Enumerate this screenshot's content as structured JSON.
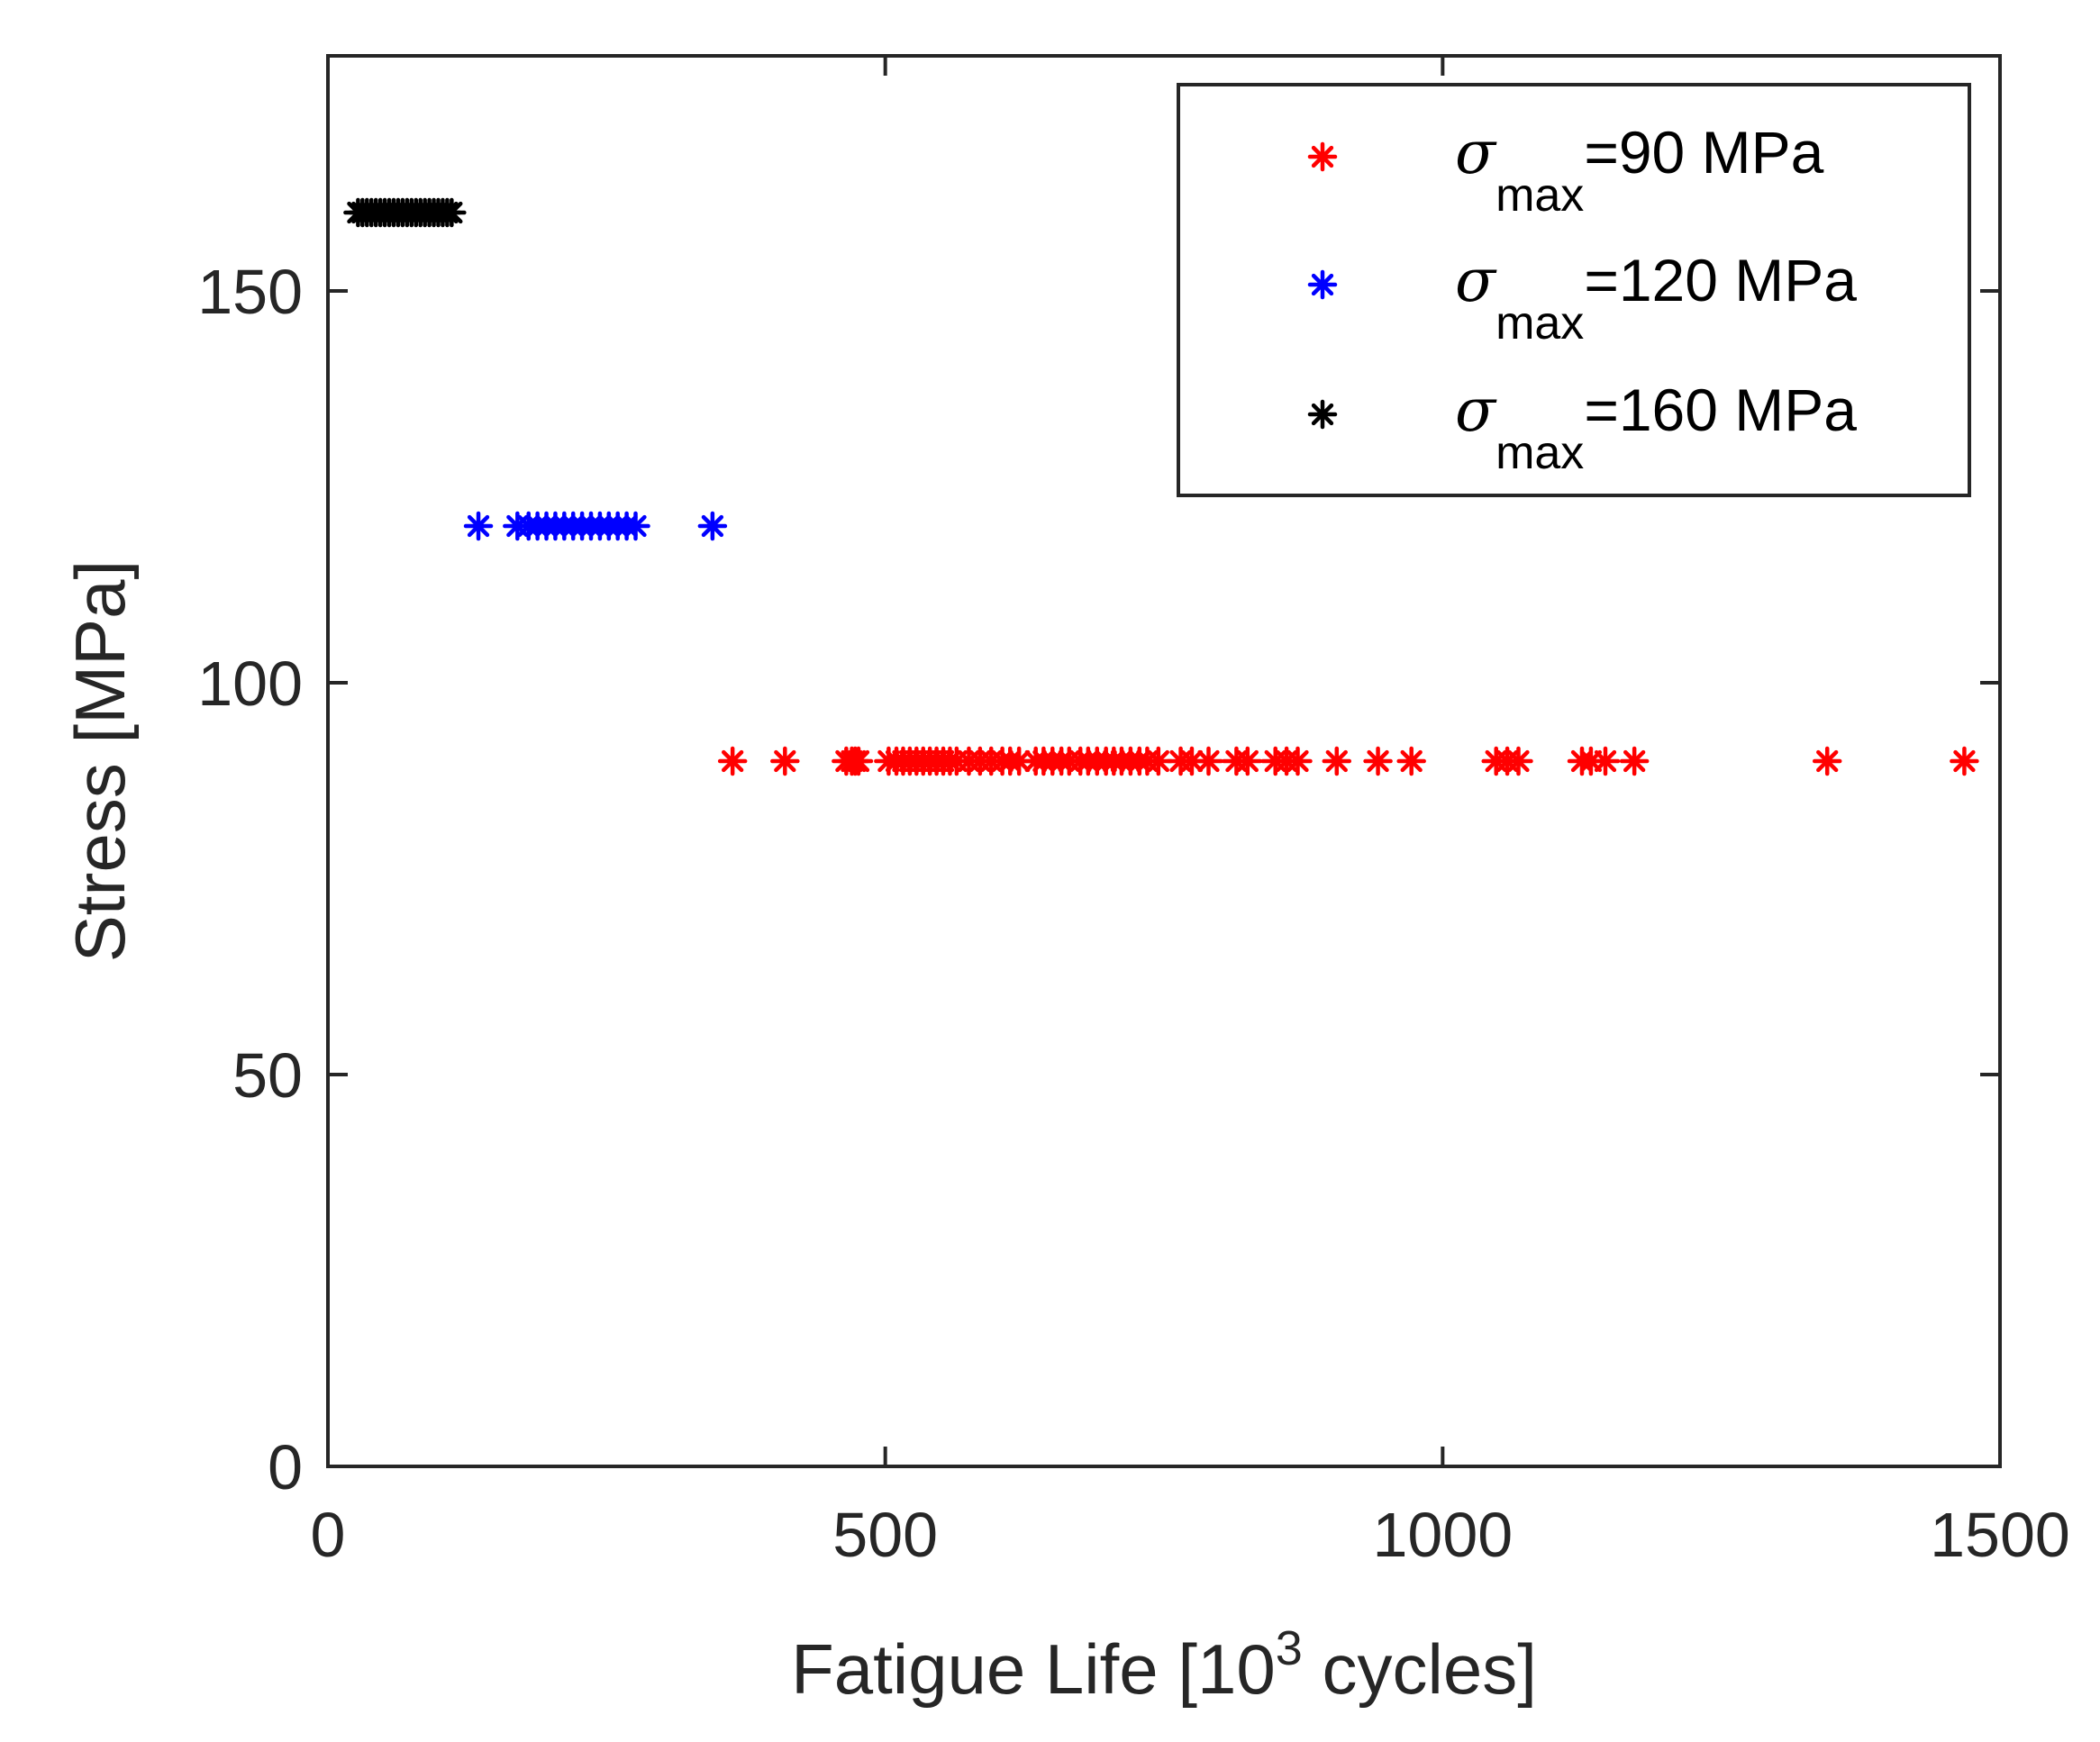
{
  "chart_data": {
    "type": "scatter",
    "title": "",
    "xlabel": "Fatigue Life [10^3 cycles]",
    "xlabel_parts": {
      "prefix": "Fatigue Life [10",
      "sup": "3",
      "suffix": " cycles]"
    },
    "ylabel": "Stress [MPa]",
    "xlim": [
      0,
      1500
    ],
    "ylim": [
      0,
      180
    ],
    "xticks": [
      0,
      500,
      1000,
      1500
    ],
    "xtick_labels": [
      "0",
      "500",
      "1000",
      "1500"
    ],
    "yticks": [
      0,
      50,
      100,
      150
    ],
    "ytick_labels": [
      "0",
      "50",
      "100",
      "150"
    ],
    "grid": false,
    "legend_position": "top-right",
    "series": [
      {
        "name": "σmax=90 MPa",
        "legend_symbol": "σ",
        "legend_sub": "max",
        "legend_rest": "=90 MPa",
        "color": "#ff0000",
        "marker": "asterisk",
        "y": 90,
        "x": [
          363,
          410,
          465,
          470,
          473,
          476,
          503,
          510,
          516,
          522,
          528,
          534,
          540,
          546,
          552,
          558,
          564,
          575,
          585,
          595,
          605,
          612,
          620,
          635,
          642,
          650,
          658,
          665,
          675,
          682,
          690,
          698,
          705,
          712,
          720,
          728,
          735,
          745,
          765,
          775,
          790,
          815,
          825,
          850,
          860,
          870,
          905,
          942,
          972,
          1048,
          1058,
          1068,
          1125,
          1133,
          1146,
          1172,
          1345,
          1468
        ]
      },
      {
        "name": "σmax=120 MPa",
        "legend_symbol": "σ",
        "legend_sub": "max",
        "legend_rest": "=120 MPa",
        "color": "#0000ff",
        "marker": "asterisk",
        "y": 120,
        "x": [
          135,
          170,
          180,
          188,
          196,
          204,
          212,
          220,
          228,
          236,
          244,
          252,
          260,
          268,
          276,
          345
        ]
      },
      {
        "name": "σmax=160 MPa",
        "legend_symbol": "σ",
        "legend_sub": "max",
        "legend_rest": "=160 MPa",
        "color": "#000000",
        "marker": "asterisk",
        "y": 160,
        "x": [
          27,
          31,
          35,
          39,
          43,
          47,
          51,
          55,
          59,
          63,
          67,
          71,
          75,
          79,
          83,
          87,
          91,
          95,
          99,
          103,
          107,
          111
        ]
      }
    ]
  }
}
